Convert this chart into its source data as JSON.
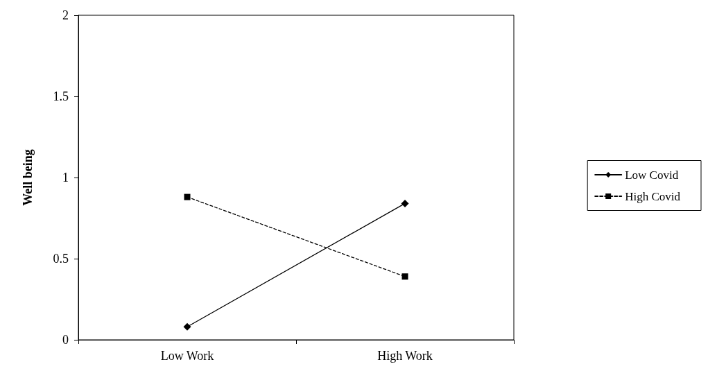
{
  "chart_data": {
    "type": "line",
    "ylabel": "Well being",
    "categories": [
      "Low Work",
      "High Work"
    ],
    "series": [
      {
        "name": "Low Covid",
        "color": "#000000",
        "values": [
          0.08,
          0.84
        ],
        "marker": "diamond",
        "line_style": "solid"
      },
      {
        "name": "High Covid",
        "color": "#000000",
        "values": [
          0.88,
          0.39
        ],
        "marker": "square",
        "line_style": "dashed"
      }
    ],
    "ylim": [
      0,
      2
    ],
    "yticks": [
      0,
      0.5,
      1,
      1.5,
      2
    ],
    "grid": false,
    "legend": "right"
  }
}
